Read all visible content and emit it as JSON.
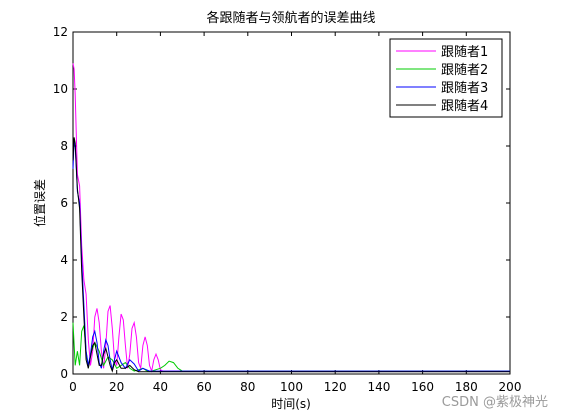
{
  "watermark": "CSDN @紫极神光",
  "chart_data": {
    "type": "line",
    "title": "各跟随者与领航者的误差曲线",
    "xlabel": "时间(s)",
    "ylabel": "位置误差",
    "xlim": [
      0,
      200
    ],
    "ylim": [
      0,
      12
    ],
    "xticks": [
      0,
      20,
      40,
      60,
      80,
      100,
      120,
      140,
      160,
      180,
      200
    ],
    "yticks": [
      0,
      2,
      4,
      6,
      8,
      10,
      12
    ],
    "grid": false,
    "legend_position": "top-right",
    "series": [
      {
        "name": "跟随者1",
        "color": "#ff00ff",
        "x": [
          0,
          0.5,
          1,
          2,
          3,
          4,
          5,
          6,
          7,
          8,
          9,
          10,
          11,
          12,
          13,
          14,
          15,
          16,
          17,
          18,
          19,
          20,
          21,
          22,
          23,
          24,
          25,
          26,
          27,
          28,
          29,
          30,
          31,
          32,
          33,
          34,
          35,
          36,
          37,
          38,
          39,
          40,
          41,
          42,
          45,
          50,
          60,
          80,
          100,
          120,
          140,
          160,
          180,
          200
        ],
        "y": [
          10.9,
          10.7,
          9.8,
          7.0,
          6.6,
          4.5,
          3.3,
          2.8,
          1.2,
          0.3,
          0.8,
          2.0,
          2.3,
          1.8,
          0.8,
          0.2,
          1.0,
          2.2,
          2.4,
          1.6,
          0.5,
          0.3,
          1.3,
          2.1,
          1.9,
          1.0,
          0.2,
          0.7,
          1.6,
          1.8,
          1.3,
          0.4,
          0.2,
          1.0,
          1.3,
          1.0,
          0.3,
          0.1,
          0.5,
          0.7,
          0.5,
          0.15,
          0.1,
          0.1,
          0.1,
          0.1,
          0.1,
          0.1,
          0.1,
          0.1,
          0.1,
          0.1,
          0.1,
          0.1
        ]
      },
      {
        "name": "跟随者2",
        "color": "#00cc00",
        "x": [
          0,
          1,
          2,
          3,
          4,
          5,
          6,
          7,
          8,
          10,
          12,
          14,
          16,
          18,
          20,
          22,
          24,
          26,
          28,
          30,
          32,
          34,
          36,
          38,
          40,
          42,
          44,
          46,
          48,
          50,
          55,
          60,
          80,
          100,
          120,
          140,
          160,
          180,
          200
        ],
        "y": [
          1.8,
          0.3,
          0.8,
          0.3,
          1.5,
          1.7,
          0.8,
          0.2,
          0.7,
          1.1,
          0.8,
          0.3,
          0.6,
          0.5,
          0.2,
          0.3,
          0.4,
          0.2,
          0.1,
          0.15,
          0.2,
          0.1,
          0.1,
          0.15,
          0.2,
          0.3,
          0.45,
          0.4,
          0.2,
          0.1,
          0.1,
          0.1,
          0.1,
          0.1,
          0.1,
          0.1,
          0.1,
          0.1,
          0.1
        ]
      },
      {
        "name": "跟随者3",
        "color": "#0000ff",
        "x": [
          0,
          0.5,
          1,
          2,
          3,
          4,
          5,
          6,
          7,
          8,
          9,
          10,
          11,
          12,
          13,
          14,
          15,
          16,
          17,
          18,
          19,
          20,
          22,
          24,
          26,
          28,
          30,
          32,
          35,
          40,
          50,
          60,
          80,
          100,
          120,
          140,
          160,
          180,
          200
        ],
        "y": [
          7.2,
          8.2,
          8.0,
          6.4,
          6.0,
          4.0,
          2.4,
          0.8,
          0.3,
          0.7,
          1.3,
          1.5,
          1.1,
          0.4,
          0.2,
          0.8,
          1.2,
          1.0,
          0.5,
          0.15,
          0.5,
          0.8,
          0.4,
          0.2,
          0.5,
          0.35,
          0.1,
          0.2,
          0.1,
          0.1,
          0.1,
          0.1,
          0.1,
          0.1,
          0.1,
          0.1,
          0.1,
          0.1,
          0.1
        ]
      },
      {
        "name": "跟随者4",
        "color": "#000000",
        "x": [
          0,
          0.5,
          1,
          2,
          3,
          4,
          5,
          6,
          7,
          8,
          9,
          10,
          11,
          12,
          13,
          14,
          15,
          16,
          17,
          18,
          19,
          20,
          22,
          24,
          26,
          28,
          30,
          35,
          40,
          50,
          60,
          80,
          100,
          120,
          140,
          160,
          180,
          200
        ],
        "y": [
          7.5,
          8.3,
          8.1,
          6.5,
          5.8,
          3.6,
          2.0,
          0.5,
          0.2,
          0.6,
          1.0,
          1.1,
          0.7,
          0.3,
          0.3,
          0.7,
          0.9,
          0.6,
          0.3,
          0.1,
          0.4,
          0.5,
          0.2,
          0.2,
          0.3,
          0.15,
          0.08,
          0.08,
          0.08,
          0.08,
          0.08,
          0.08,
          0.08,
          0.08,
          0.08,
          0.08,
          0.08,
          0.08
        ]
      }
    ]
  }
}
